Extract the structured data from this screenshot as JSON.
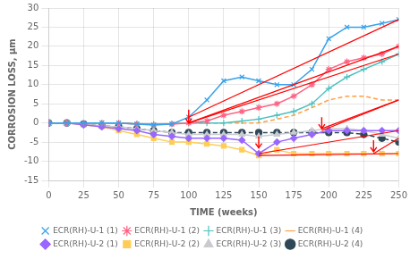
{
  "chart_data": {
    "type": "line",
    "xlabel": "TIME (weeks)",
    "ylabel": "CORROSION LOSS, μm",
    "x": [
      0,
      13,
      25,
      38,
      50,
      63,
      75,
      88,
      100,
      113,
      125,
      138,
      150,
      163,
      175,
      188,
      200,
      213,
      225,
      238,
      250
    ],
    "series": [
      {
        "name": "ECR(RH)-U-1 (1)",
        "marker": "x",
        "line_style": "solid",
        "values": [
          0,
          0,
          0,
          0,
          0,
          -0.3,
          -0.5,
          -0.3,
          1.5,
          6,
          11,
          12,
          11,
          10,
          10,
          14,
          22,
          25,
          25,
          26,
          27
        ]
      },
      {
        "name": "ECR(RH)-U-1 (2)",
        "marker": "star",
        "line_style": "solid",
        "values": [
          0,
          0,
          0,
          0,
          0,
          -0.3,
          -0.5,
          -0.3,
          0,
          0.5,
          2,
          3,
          4,
          5,
          7,
          10,
          14,
          16,
          17,
          18,
          20
        ]
      },
      {
        "name": "ECR(RH)-U-1 (3)",
        "marker": "plus",
        "line_style": "solid",
        "values": [
          0,
          0,
          0,
          0,
          0,
          -0.2,
          -0.3,
          -0.2,
          0,
          0,
          0,
          0.5,
          1,
          2,
          3,
          5,
          9,
          12,
          14,
          16,
          18
        ]
      },
      {
        "name": "ECR(RH)-U-1 (4)",
        "line_style": "dashed",
        "values": [
          0,
          0,
          0,
          0,
          0,
          -0.2,
          -0.3,
          -0.2,
          0,
          0,
          0,
          0,
          0,
          1,
          2,
          4,
          6,
          7,
          7,
          6,
          6
        ]
      },
      {
        "name": "ECR(RH)-U-2 (1)",
        "marker": "diamond",
        "line_style": "solid",
        "values": [
          0,
          0,
          -0.5,
          -1,
          -1.5,
          -2,
          -3,
          -3.5,
          -4,
          -4,
          -4,
          -4.5,
          -8,
          -5,
          -4,
          -3,
          -2,
          -2,
          -2,
          -2,
          -2
        ]
      },
      {
        "name": "ECR(RH)-U-2 (2)",
        "marker": "square",
        "line_style": "solid",
        "values": [
          0,
          0,
          -0.5,
          -1,
          -2,
          -3,
          -4,
          -5,
          -5,
          -5.5,
          -6,
          -7,
          -8.5,
          -7,
          -8,
          -8,
          -8,
          -8,
          -8,
          -8,
          -8
        ]
      },
      {
        "name": "ECR(RH)-U-2 (3)",
        "marker": "triangle",
        "line_style": "solid",
        "values": [
          0,
          0,
          -0.3,
          -0.8,
          -1,
          -1.5,
          -2,
          -2.5,
          -3,
          -3,
          -3,
          -3,
          -3.5,
          -3,
          -2.5,
          -2,
          -1.5,
          -1.5,
          -2,
          -3,
          -4
        ]
      },
      {
        "name": "ECR(RH)-U-2 (4)",
        "marker": "circle",
        "line_style": "dashed",
        "values": [
          0,
          0,
          -0.3,
          -0.8,
          -1,
          -1.5,
          -2,
          -2.5,
          -2.5,
          -2.5,
          -2.5,
          -2.5,
          -2.5,
          -2.5,
          -2.5,
          -2.5,
          -2.5,
          -2.5,
          -3,
          -4,
          -5
        ]
      }
    ],
    "trend_lines": [
      {
        "color": "red",
        "x": [
          100,
          250
        ],
        "y": [
          1.5,
          27
        ]
      },
      {
        "color": "red",
        "x": [
          100,
          250
        ],
        "y": [
          0,
          20
        ]
      },
      {
        "color": "red",
        "x": [
          100,
          250
        ],
        "y": [
          0,
          18
        ]
      },
      {
        "color": "red",
        "x": [
          150,
          250
        ],
        "y": [
          -8.5,
          -8
        ]
      },
      {
        "color": "red",
        "x": [
          150,
          250
        ],
        "y": [
          -8,
          -2
        ]
      },
      {
        "color": "red",
        "x": [
          195,
          250
        ],
        "y": [
          -2,
          6
        ]
      },
      {
        "color": "red",
        "x": [
          195,
          250
        ],
        "y": [
          -1.5,
          6
        ]
      },
      {
        "color": "red",
        "x": [
          232,
          250
        ],
        "y": [
          -8,
          -4
        ]
      }
    ],
    "arrows": [
      {
        "color": "red",
        "x": 100,
        "y_tail": 3.5,
        "y_tip": 0
      },
      {
        "color": "red",
        "x": 150,
        "y_tail": -3.5,
        "y_tip": -6.5
      },
      {
        "color": "red",
        "x": 195,
        "y_tail": 1.5,
        "y_tip": -1.5
      },
      {
        "color": "red",
        "x": 232,
        "y_tail": -4.5,
        "y_tip": -7.5
      }
    ],
    "xlim": [
      0,
      250
    ],
    "ylim": [
      -15,
      30
    ],
    "xticks": [
      0,
      25,
      50,
      75,
      100,
      125,
      150,
      175,
      200,
      225,
      250
    ],
    "yticks": [
      -15,
      -10,
      -5,
      0,
      5,
      10,
      15,
      20,
      25,
      30
    ],
    "grid": true,
    "legend": "bottom"
  }
}
